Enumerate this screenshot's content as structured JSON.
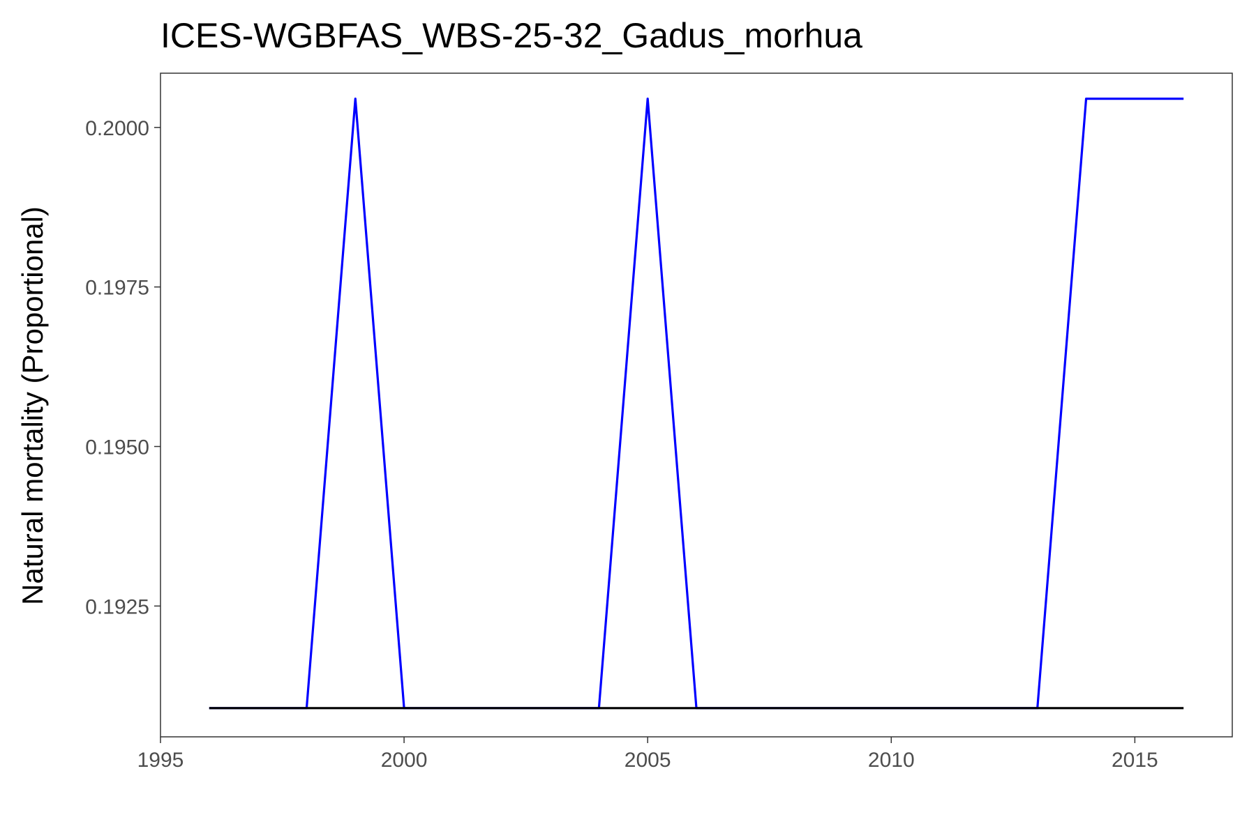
{
  "chart_data": {
    "type": "line",
    "title": "ICES-WGBFAS_WBS-25-32_Gadus_morhua",
    "xlabel": "",
    "ylabel": "Natural mortality (Proportional)",
    "xlim": [
      1995,
      2017
    ],
    "ylim": [
      0.19045,
      0.20085
    ],
    "x_ticks": [
      "1995",
      "2000",
      "2005",
      "2010",
      "2015"
    ],
    "y_ticks": [
      "0.1925",
      "0.1950",
      "0.1975",
      "0.2000"
    ],
    "grid": false,
    "legend": "none",
    "x": [
      1996,
      1997,
      1998,
      1999,
      2000,
      2001,
      2002,
      2003,
      2004,
      2005,
      2006,
      2007,
      2008,
      2009,
      2010,
      2011,
      2012,
      2013,
      2014,
      2015,
      2016
    ],
    "series": [
      {
        "color": "#0000ff",
        "values": [
          0.1909,
          0.1909,
          0.1909,
          0.20045,
          0.1909,
          0.1909,
          0.1909,
          0.1909,
          0.1909,
          0.20045,
          0.1909,
          0.1909,
          0.1909,
          0.1909,
          0.1909,
          0.1909,
          0.1909,
          0.1909,
          0.20045,
          0.20045,
          0.20045
        ]
      },
      {
        "color": "#000000",
        "values": [
          0.1909,
          0.1909,
          0.1909,
          0.1909,
          0.1909,
          0.1909,
          0.1909,
          0.1909,
          0.1909,
          0.1909,
          0.1909,
          0.1909,
          0.1909,
          0.1909,
          0.1909,
          0.1909,
          0.1909,
          0.1909,
          0.1909,
          0.1909,
          0.1909
        ]
      }
    ]
  }
}
